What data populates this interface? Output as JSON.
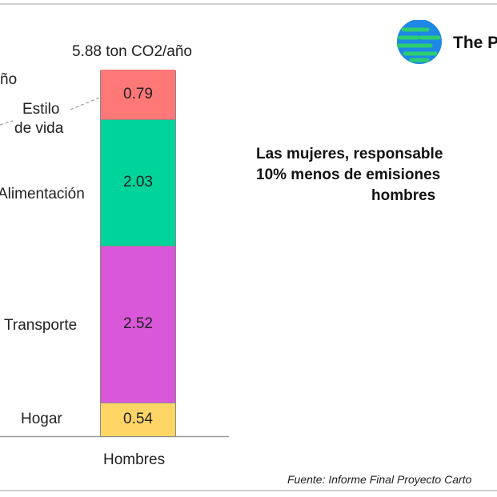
{
  "chart_data": {
    "type": "bar",
    "stacked": true,
    "categories": [
      "Hombres"
    ],
    "total_label": "5.88 ton CO2/año",
    "series": [
      {
        "name": "Hogar",
        "values": [
          0.54
        ],
        "color": "#ffd666"
      },
      {
        "name": "Transporte",
        "values": [
          2.52
        ],
        "color": "#d957d9"
      },
      {
        "name": "Alimentación",
        "values": [
          2.03
        ],
        "color": "#00d49a"
      },
      {
        "name": "Estilo de vida",
        "values": [
          0.79
        ],
        "color": "#ff7878"
      }
    ],
    "segment_labels": [
      "0.54",
      "2.52",
      "2.03",
      "0.79"
    ],
    "series_label_lines": {
      "Estilo de vida": [
        "Estilo",
        "de vida"
      ]
    },
    "partial_left_text": "ño",
    "ylim": [
      0,
      5.88
    ],
    "grid": false
  },
  "brand": {
    "name": "The P",
    "logo_colors": [
      "#1e88e5",
      "#2ecc71"
    ]
  },
  "headline": [
    "Las mujeres, responsable",
    "10% menos de emisiones",
    "hombres"
  ],
  "source": "Fuente: Informe Final Proyecto Carto"
}
